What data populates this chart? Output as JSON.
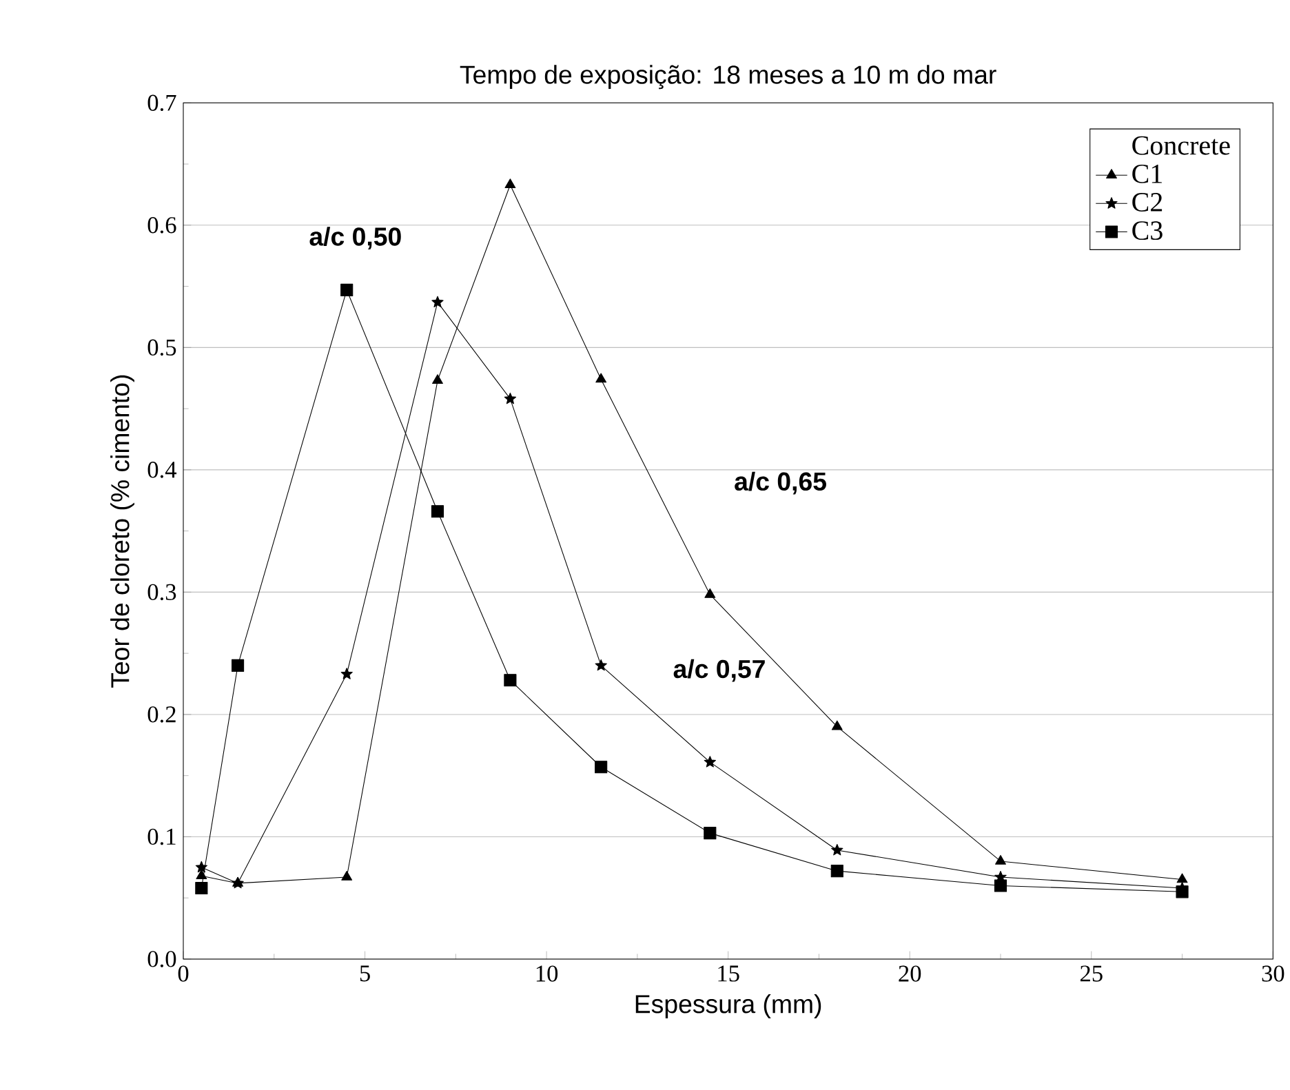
{
  "chart_data": {
    "type": "line",
    "title": "Tempo de exposição: 18 meses a 10 m do mar",
    "xlabel": "Espessura (mm)",
    "ylabel": "Teor de cloreto (% cimento)",
    "x": [
      0.5,
      1.5,
      4.5,
      7,
      9,
      11.5,
      14.5,
      18,
      22.5,
      27.5
    ],
    "series": [
      {
        "name": "C1",
        "color": "#000000",
        "marker": "triangle",
        "values": [
          0.068,
          0.062,
          0.067,
          0.473,
          0.633,
          0.474,
          0.298,
          0.19,
          0.08,
          0.065
        ]
      },
      {
        "name": "C2",
        "color": "#000000",
        "marker": "star",
        "values": [
          0.075,
          0.062,
          0.233,
          0.537,
          0.458,
          0.24,
          0.161,
          0.089,
          0.067,
          0.058
        ]
      },
      {
        "name": "C3",
        "color": "#000000",
        "marker": "square",
        "values": [
          0.058,
          0.24,
          0.547,
          0.366,
          0.228,
          0.157,
          0.103,
          0.072,
          0.06,
          0.055
        ]
      }
    ],
    "legend_title": "Concrete",
    "legend": "top right",
    "grid": "y",
    "line_style": "solid",
    "xlim": [
      0,
      30
    ],
    "xticks": [
      0,
      5,
      10,
      15,
      20,
      25,
      30
    ],
    "ylim": [
      0,
      0.7
    ],
    "yticks": [
      {
        "value": 0,
        "label": "0.0"
      },
      0.1,
      0.2,
      0.3,
      0.4,
      0.5,
      0.6,
      0.7
    ],
    "annotations": [
      "a/c 0,50",
      "a/c 0,65",
      "a/c 0,57"
    ]
  }
}
